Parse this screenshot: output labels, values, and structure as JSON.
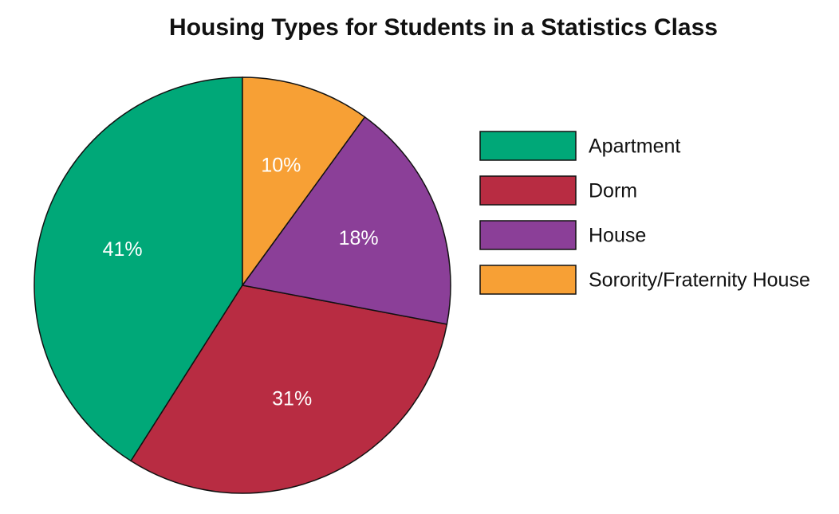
{
  "chart_data": {
    "type": "pie",
    "title": "Housing Types for Students in a Statistics Class",
    "categories": [
      "Apartment",
      "Dorm",
      "House",
      "Sorority/Fraternity House"
    ],
    "values": [
      41,
      31,
      18,
      10
    ],
    "value_labels": [
      "41%",
      "31%",
      "18%",
      "10%"
    ],
    "colors": [
      "#00a878",
      "#b82c42",
      "#8b3f98",
      "#f7a035"
    ],
    "legend": "right"
  }
}
